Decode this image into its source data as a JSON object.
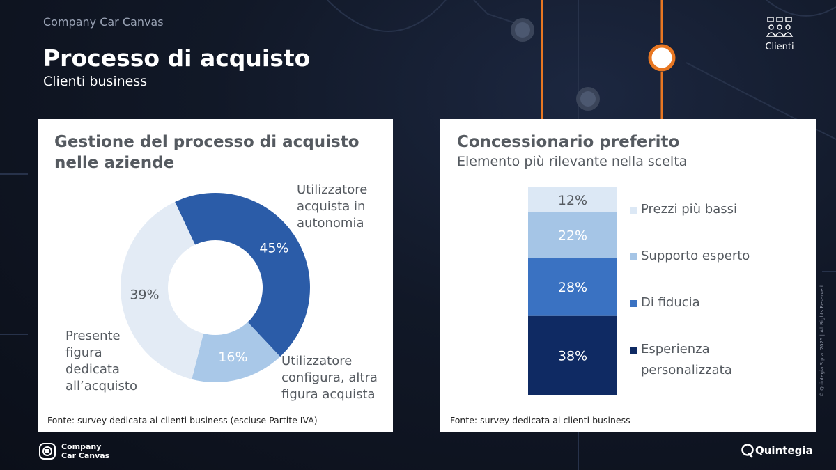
{
  "header": {
    "brand": "Company Car Canvas",
    "title": "Processo di acquisto",
    "subtitle": "Clienti business",
    "badge_label": "Clienti"
  },
  "left_panel": {
    "title": "Gestione del processo di acquisto nelle aziende",
    "source": "Fonte: survey dedicata ai clienti business (escluse Partite IVA)"
  },
  "right_panel": {
    "title": "Concessionario preferito",
    "subtitle": "Elemento più rilevante nella scelta",
    "source": "Fonte: survey dedicata ai clienti business"
  },
  "chart_data": [
    {
      "type": "pie",
      "title": "Gestione del processo di acquisto nelle aziende",
      "slices": [
        {
          "label": "Utilizzatore acquista in autonomia",
          "value": 45,
          "display": "45%",
          "color": "#2b5ca8"
        },
        {
          "label": "Utilizzatore configura, altra figura acquista",
          "value": 16,
          "display": "16%",
          "color": "#a9c8e8"
        },
        {
          "label": "Presente figura dedicata all’acquisto",
          "value": 39,
          "display": "39%",
          "color": "#e3ebf5"
        }
      ],
      "donut": true
    },
    {
      "type": "bar",
      "stacked": true,
      "title": "Concessionario preferito",
      "subtitle": "Elemento più rilevante nella scelta",
      "series": [
        {
          "name": "Prezzi più bassi",
          "value": 12,
          "display": "12%",
          "color": "#dce8f5",
          "text_color": "#555a60"
        },
        {
          "name": "Supporto esperto",
          "value": 22,
          "display": "22%",
          "color": "#a5c5e6",
          "text_color": "#ffffff"
        },
        {
          "name": "Di fiducia",
          "value": 28,
          "display": "28%",
          "color": "#3a72c2",
          "text_color": "#ffffff"
        },
        {
          "name": "Esperienza personalizzata",
          "value": 38,
          "display": "38%",
          "color": "#0f2a63",
          "text_color": "#ffffff"
        }
      ],
      "legend_position": "right"
    }
  ],
  "footer": {
    "logo_line1": "Company",
    "logo_line2": "Car Canvas",
    "partner": "Quintegia",
    "copyright": "© Quintegia S.p.a. 2025 | All Rights Reserved"
  }
}
